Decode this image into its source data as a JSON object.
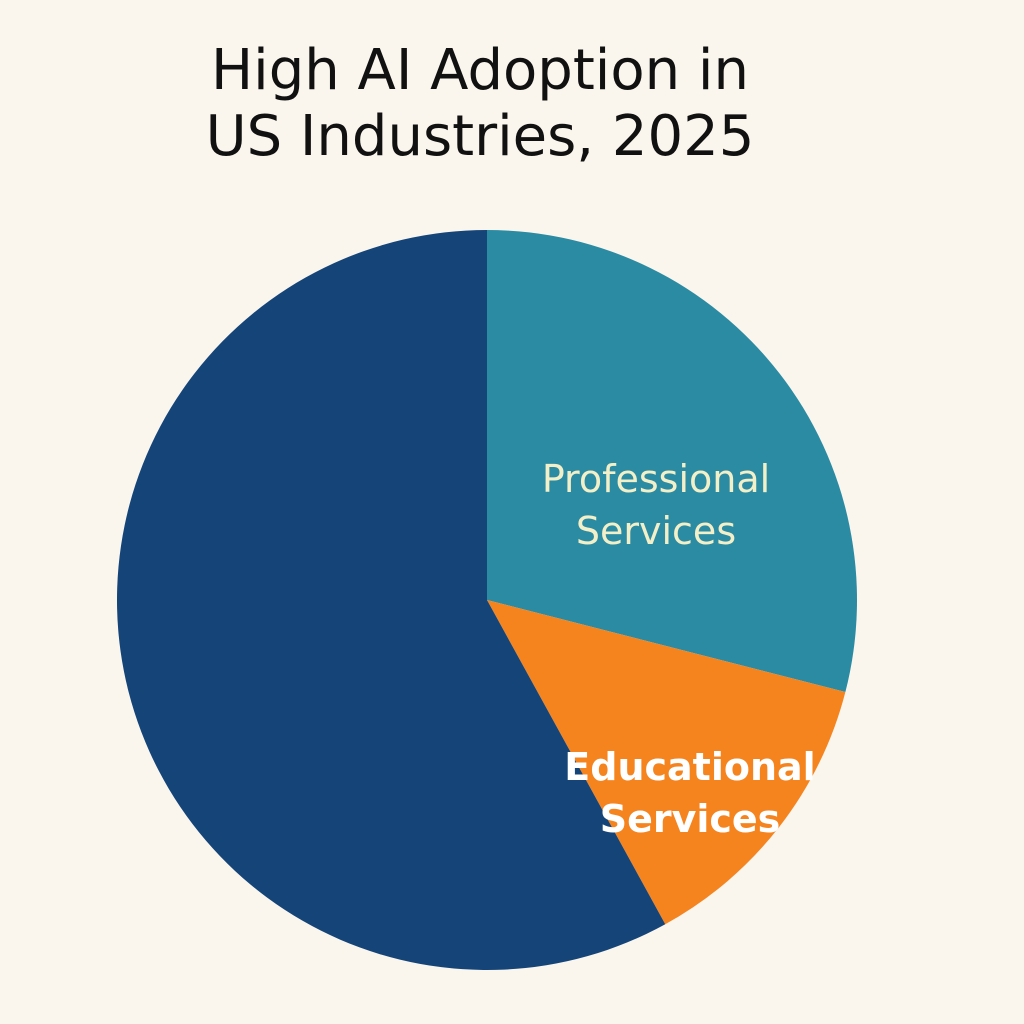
{
  "chart_data": {
    "type": "pie",
    "title_lines": [
      "High AI Adoption in",
      "US Industries, 2025"
    ],
    "slices": [
      {
        "label": "Professional Services",
        "label_lines": [
          "Professional",
          "Services"
        ],
        "value": 29,
        "color": "#2a8ba3",
        "label_color": "#f3efc8"
      },
      {
        "label": "Educational Services",
        "label_lines": [
          "Educational",
          "Services"
        ],
        "value": 13,
        "color": "#f5841f",
        "label_color": "#ffffff"
      },
      {
        "label": "",
        "label_lines": [],
        "value": 58,
        "color": "#144478",
        "label_color": "#ffffff"
      }
    ],
    "start_angle": "12 o'clock",
    "direction": "clockwise",
    "legend": "none"
  },
  "colors": {
    "background": "#faf6ee",
    "title": "#111111"
  }
}
